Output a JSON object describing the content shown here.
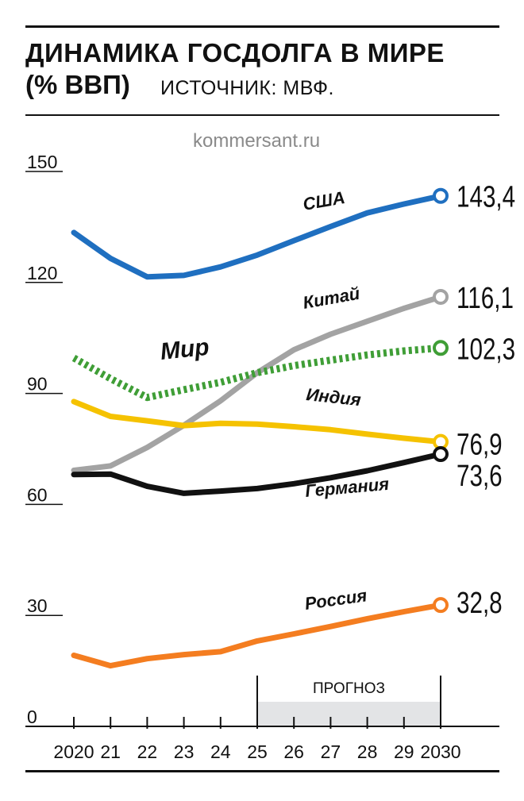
{
  "header": {
    "title_line1": "ДИНАМИКА ГОСДОЛГА В МИРЕ",
    "title_line2": "(% ВВП)",
    "source": "ИСТОЧНИК: МВФ.",
    "watermark": "kommersant.ru"
  },
  "chart_data": {
    "type": "line",
    "x": [
      2020,
      2021,
      2022,
      2023,
      2024,
      2025,
      2026,
      2027,
      2028,
      2029,
      2030
    ],
    "x_tick_labels": [
      "2020",
      "21",
      "22",
      "23",
      "24",
      "25",
      "26",
      "27",
      "28",
      "29",
      "2030"
    ],
    "y_ticks": [
      0,
      30,
      60,
      90,
      120,
      150
    ],
    "ylim": [
      0,
      155
    ],
    "forecast": {
      "label": "ПРОГНОЗ",
      "from": 2025,
      "to": 2030
    },
    "series": [
      {
        "name": "США",
        "color": "#1f6fc0",
        "style": "solid",
        "values": [
          133.5,
          126.5,
          121.5,
          121.9,
          124.2,
          127.4,
          131.3,
          135.1,
          138.8,
          141.2,
          143.4
        ],
        "end_label": "143,4"
      },
      {
        "name": "Китай",
        "color": "#a3a3a3",
        "style": "solid",
        "values": [
          69.2,
          70.4,
          75.4,
          81.4,
          88.0,
          95.6,
          101.8,
          106.0,
          109.5,
          113.0,
          116.1
        ],
        "end_label": "116,1"
      },
      {
        "name": "Мир",
        "color": "#3f9e36",
        "style": "dashed",
        "values": [
          99.6,
          94.0,
          88.9,
          91.0,
          93.0,
          95.6,
          97.5,
          99.0,
          100.4,
          101.5,
          102.3
        ],
        "end_label": "102,3"
      },
      {
        "name": "Индия",
        "color": "#f5c200",
        "style": "solid",
        "values": [
          87.8,
          83.8,
          82.6,
          81.3,
          81.9,
          81.7,
          81.0,
          80.2,
          79.0,
          77.9,
          76.9
        ],
        "end_label": "76,9"
      },
      {
        "name": "Германия",
        "color": "#111111",
        "style": "solid",
        "values": [
          68.1,
          68.2,
          64.9,
          63.0,
          63.6,
          64.3,
          65.6,
          67.2,
          69.1,
          71.3,
          73.6
        ],
        "end_label": "73,6"
      },
      {
        "name": "Россия",
        "color": "#f47d20",
        "style": "solid",
        "values": [
          19.2,
          16.4,
          18.3,
          19.4,
          20.2,
          23.1,
          25.0,
          27.0,
          29.1,
          31.0,
          32.8
        ],
        "end_label": "32,8"
      }
    ]
  }
}
